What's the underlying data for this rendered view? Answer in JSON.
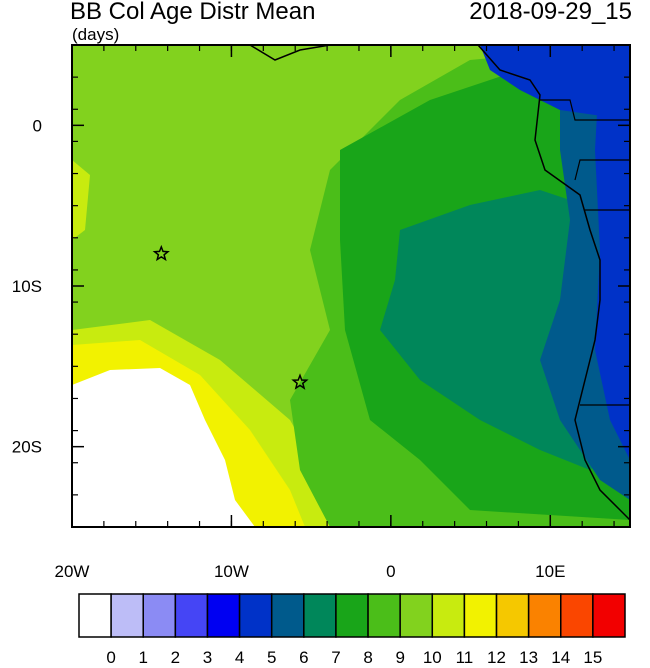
{
  "title": "BB Col Age Distr Mean",
  "units": "(days)",
  "timestamp": "2018-09-29_15",
  "map": {
    "lon_range": [
      -20,
      15
    ],
    "lat_range": [
      -25,
      5
    ],
    "lon_ticks": [
      {
        "value": -20,
        "label": "20W"
      },
      {
        "value": -10,
        "label": "10W"
      },
      {
        "value": 0,
        "label": "0"
      },
      {
        "value": 10,
        "label": "10E"
      }
    ],
    "lat_ticks": [
      {
        "value": 0,
        "label": "0"
      },
      {
        "value": -10,
        "label": "10S"
      },
      {
        "value": -20,
        "label": "20S"
      }
    ],
    "markers": [
      {
        "name": "star-marker-1",
        "lon": -14.4,
        "lat": -8.0
      },
      {
        "name": "star-marker-2",
        "lon": -5.7,
        "lat": -16.0
      }
    ]
  },
  "colorbar": {
    "labels": [
      "0",
      "1",
      "2",
      "3",
      "4",
      "5",
      "6",
      "7",
      "8",
      "9",
      "10",
      "11",
      "12",
      "13",
      "14",
      "15"
    ],
    "colors": [
      "#ffffff",
      "#bdbdf7",
      "#8b8bf4",
      "#4545f5",
      "#0000f2",
      "#0032c8",
      "#005a8c",
      "#00875a",
      "#19a519",
      "#4bbe19",
      "#82d21e",
      "#c8eb0f",
      "#f2f200",
      "#f5c800",
      "#fa8200",
      "#fa4600",
      "#f20000"
    ]
  }
}
